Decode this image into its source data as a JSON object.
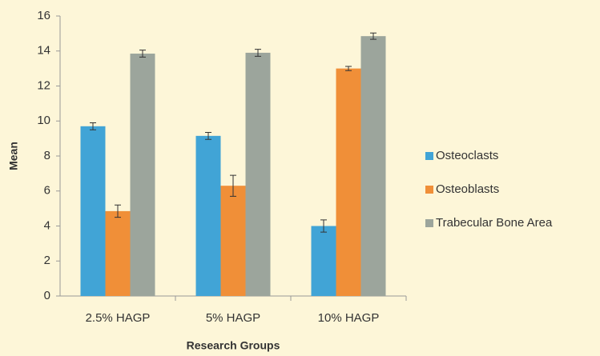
{
  "chart_data": {
    "type": "bar",
    "x_label": "Research Groups",
    "y_label": "Mean",
    "categories": [
      "2.5% HAGP",
      "5% HAGP",
      "10% HAGP"
    ],
    "series": [
      {
        "name": "Osteoclasts",
        "color": "#41a4d6",
        "values": [
          9.7,
          9.15,
          4.0
        ],
        "errors": [
          0.2,
          0.2,
          0.35
        ]
      },
      {
        "name": "Osteoblasts",
        "color": "#f08f38",
        "values": [
          4.85,
          6.3,
          13.0
        ],
        "errors": [
          0.35,
          0.6,
          0.12
        ]
      },
      {
        "name": "Trabecular Bone Area",
        "color": "#9ca59c",
        "values": [
          13.85,
          13.9,
          14.85
        ],
        "errors": [
          0.2,
          0.2,
          0.18
        ]
      }
    ],
    "ylim": [
      0,
      16
    ],
    "yticks": [
      0,
      2,
      4,
      6,
      8,
      10,
      12,
      14,
      16
    ],
    "grid": false,
    "legend": "right"
  }
}
